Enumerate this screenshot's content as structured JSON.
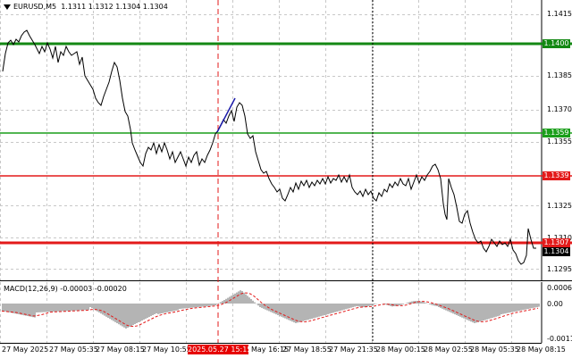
{
  "header": {
    "symbol_label": "EURUSD,M5",
    "ohlc": "1.1311 1.1312 1.1304 1.1304"
  },
  "macd": {
    "label": "MACD(12,26,9) -0.00003 -0.00020",
    "axis_labels": [
      "0.0006",
      "0.00",
      "-0.00112"
    ]
  },
  "price_axis": {
    "labels": [
      "1.1415",
      "1.1385",
      "1.1370",
      "1.1355",
      "1.1325",
      "1.1310",
      "1.1295"
    ]
  },
  "levels": [
    {
      "name": "level-1.1400",
      "value": "1.1400",
      "line_color": "#138813",
      "tag_color": "#138813",
      "text_color": "#ffffff"
    },
    {
      "name": "level-1.1359",
      "value": "1.1359",
      "line_color": "#1a9e1a",
      "tag_color": "#1a9e1a",
      "text_color": "#ffffff"
    },
    {
      "name": "level-1.1339",
      "value": "1.1339",
      "line_color": "#e31a1a",
      "tag_color": "#e31a1a",
      "text_color": "#ffffff"
    },
    {
      "name": "level-1.1307",
      "value": "1.1307",
      "line_color": "#e31a1a",
      "tag_color": "#e31a1a",
      "text_color": "#ffffff"
    }
  ],
  "current_price": {
    "value": "1.1304",
    "tag_color": "#000000",
    "text_color": "#ffffff"
  },
  "time_axis": {
    "labels": [
      "27 May 2025",
      "27 May 05:35",
      "27 May 08:15",
      "27 May 10:55",
      "May 16:15",
      "27 May 18:55",
      "27 May 21:35",
      "28 May 00:15",
      "28 May 02:55",
      "28 May 05:35",
      "28 May 08:15"
    ],
    "highlight_label": "2025.05.27 15:15"
  },
  "colors": {
    "price_line": "#000000",
    "grid": "#c8c8c8",
    "macd_hist": "#b4b4b4",
    "macd_signal": "#e31a1a",
    "marker_line": "#e31a1a",
    "trend_line": "#1a1aaa"
  }
}
